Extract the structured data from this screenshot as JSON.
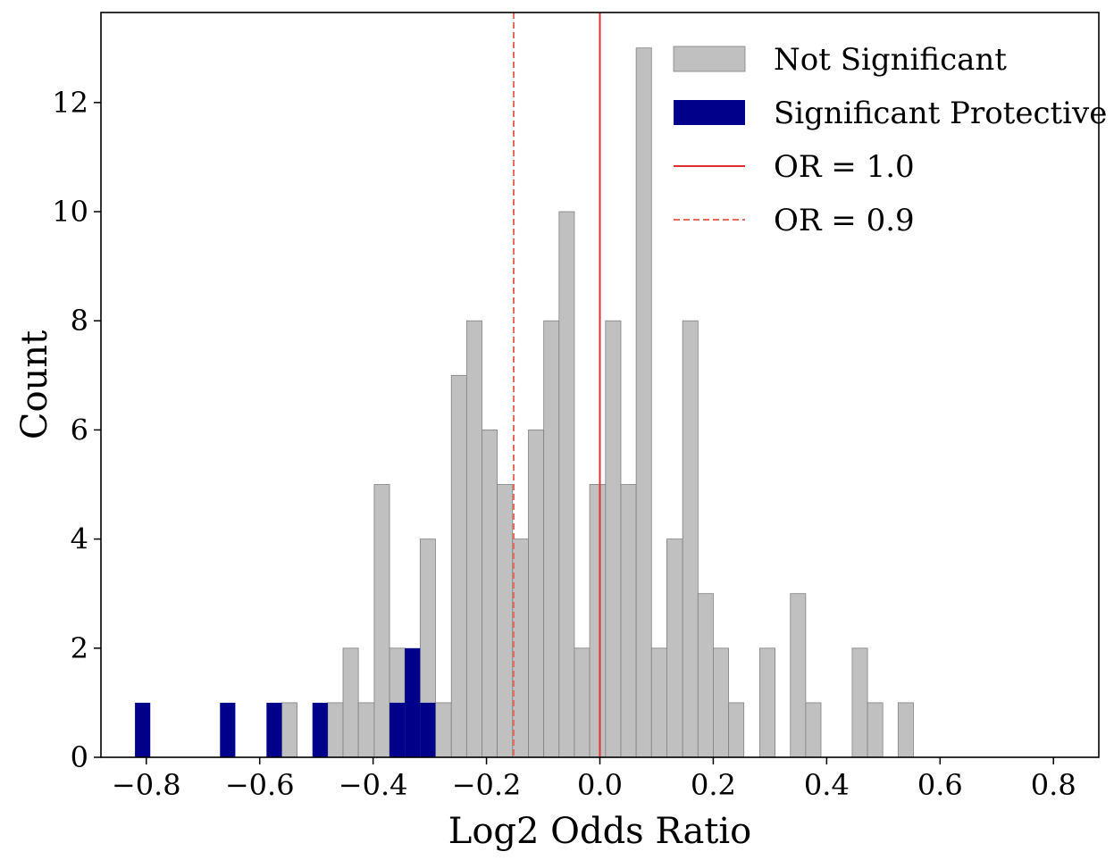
{
  "chart_data": {
    "type": "bar",
    "subtype": "histogram",
    "xlabel": "Log2 Odds Ratio",
    "ylabel": "Count",
    "xlim": [
      -0.88,
      0.88
    ],
    "ylim": [
      0,
      13.65
    ],
    "xticks": [
      -0.8,
      -0.6,
      -0.4,
      -0.2,
      0.0,
      0.2,
      0.4,
      0.6,
      0.8
    ],
    "xtick_labels": [
      "−0.8",
      "−0.6",
      "−0.4",
      "−0.2",
      "0.0",
      "0.2",
      "0.4",
      "0.6",
      "0.8"
    ],
    "yticks": [
      0,
      2,
      4,
      6,
      8,
      10,
      12
    ],
    "ytick_labels": [
      "0",
      "2",
      "4",
      "6",
      "8",
      "10",
      "12"
    ],
    "bin_width": 0.0272,
    "grid": false,
    "legend_position": "top-right",
    "series": [
      {
        "name": "Not Significant",
        "color": "#c0c0c0",
        "edge": "#808080",
        "bins": [
          {
            "x0": -0.561,
            "x1": -0.534,
            "count": 1
          },
          {
            "x0": -0.48,
            "x1": -0.453,
            "count": 1
          },
          {
            "x0": -0.453,
            "x1": -0.426,
            "count": 2
          },
          {
            "x0": -0.426,
            "x1": -0.398,
            "count": 1
          },
          {
            "x0": -0.398,
            "x1": -0.371,
            "count": 5
          },
          {
            "x0": -0.371,
            "x1": -0.344,
            "count": 2
          },
          {
            "x0": -0.317,
            "x1": -0.29,
            "count": 4
          },
          {
            "x0": -0.29,
            "x1": -0.262,
            "count": 1
          },
          {
            "x0": -0.262,
            "x1": -0.235,
            "count": 7
          },
          {
            "x0": -0.235,
            "x1": -0.208,
            "count": 8
          },
          {
            "x0": -0.208,
            "x1": -0.181,
            "count": 6
          },
          {
            "x0": -0.181,
            "x1": -0.154,
            "count": 5
          },
          {
            "x0": -0.154,
            "x1": -0.126,
            "count": 4
          },
          {
            "x0": -0.126,
            "x1": -0.099,
            "count": 6
          },
          {
            "x0": -0.099,
            "x1": -0.072,
            "count": 8
          },
          {
            "x0": -0.072,
            "x1": -0.045,
            "count": 10
          },
          {
            "x0": -0.045,
            "x1": -0.018,
            "count": 2
          },
          {
            "x0": -0.018,
            "x1": 0.01,
            "count": 5
          },
          {
            "x0": 0.01,
            "x1": 0.037,
            "count": 8
          },
          {
            "x0": 0.037,
            "x1": 0.064,
            "count": 5
          },
          {
            "x0": 0.064,
            "x1": 0.091,
            "count": 13
          },
          {
            "x0": 0.091,
            "x1": 0.118,
            "count": 2
          },
          {
            "x0": 0.118,
            "x1": 0.146,
            "count": 4
          },
          {
            "x0": 0.146,
            "x1": 0.173,
            "count": 8
          },
          {
            "x0": 0.173,
            "x1": 0.2,
            "count": 3
          },
          {
            "x0": 0.2,
            "x1": 0.227,
            "count": 2
          },
          {
            "x0": 0.227,
            "x1": 0.254,
            "count": 1
          },
          {
            "x0": 0.282,
            "x1": 0.309,
            "count": 2
          },
          {
            "x0": 0.336,
            "x1": 0.363,
            "count": 3
          },
          {
            "x0": 0.363,
            "x1": 0.39,
            "count": 1
          },
          {
            "x0": 0.445,
            "x1": 0.472,
            "count": 2
          },
          {
            "x0": 0.472,
            "x1": 0.499,
            "count": 1
          },
          {
            "x0": 0.526,
            "x1": 0.553,
            "count": 1
          }
        ]
      },
      {
        "name": "Significant Protective",
        "color": "#00008b",
        "bins": [
          {
            "x0": -0.82,
            "x1": -0.793,
            "count": 1
          },
          {
            "x0": -0.67,
            "x1": -0.643,
            "count": 1
          },
          {
            "x0": -0.588,
            "x1": -0.561,
            "count": 1
          },
          {
            "x0": -0.507,
            "x1": -0.48,
            "count": 1
          },
          {
            "x0": -0.371,
            "x1": -0.344,
            "count": 1
          },
          {
            "x0": -0.344,
            "x1": -0.317,
            "count": 2
          },
          {
            "x0": -0.317,
            "x1": -0.29,
            "count": 1
          }
        ]
      }
    ],
    "reference_lines": [
      {
        "name": "OR = 1.0",
        "x": 0.0,
        "style": "solid",
        "color": "#e03030"
      },
      {
        "name": "OR = 0.9",
        "x": -0.152,
        "style": "dashed",
        "color": "#e86a5a"
      }
    ]
  }
}
